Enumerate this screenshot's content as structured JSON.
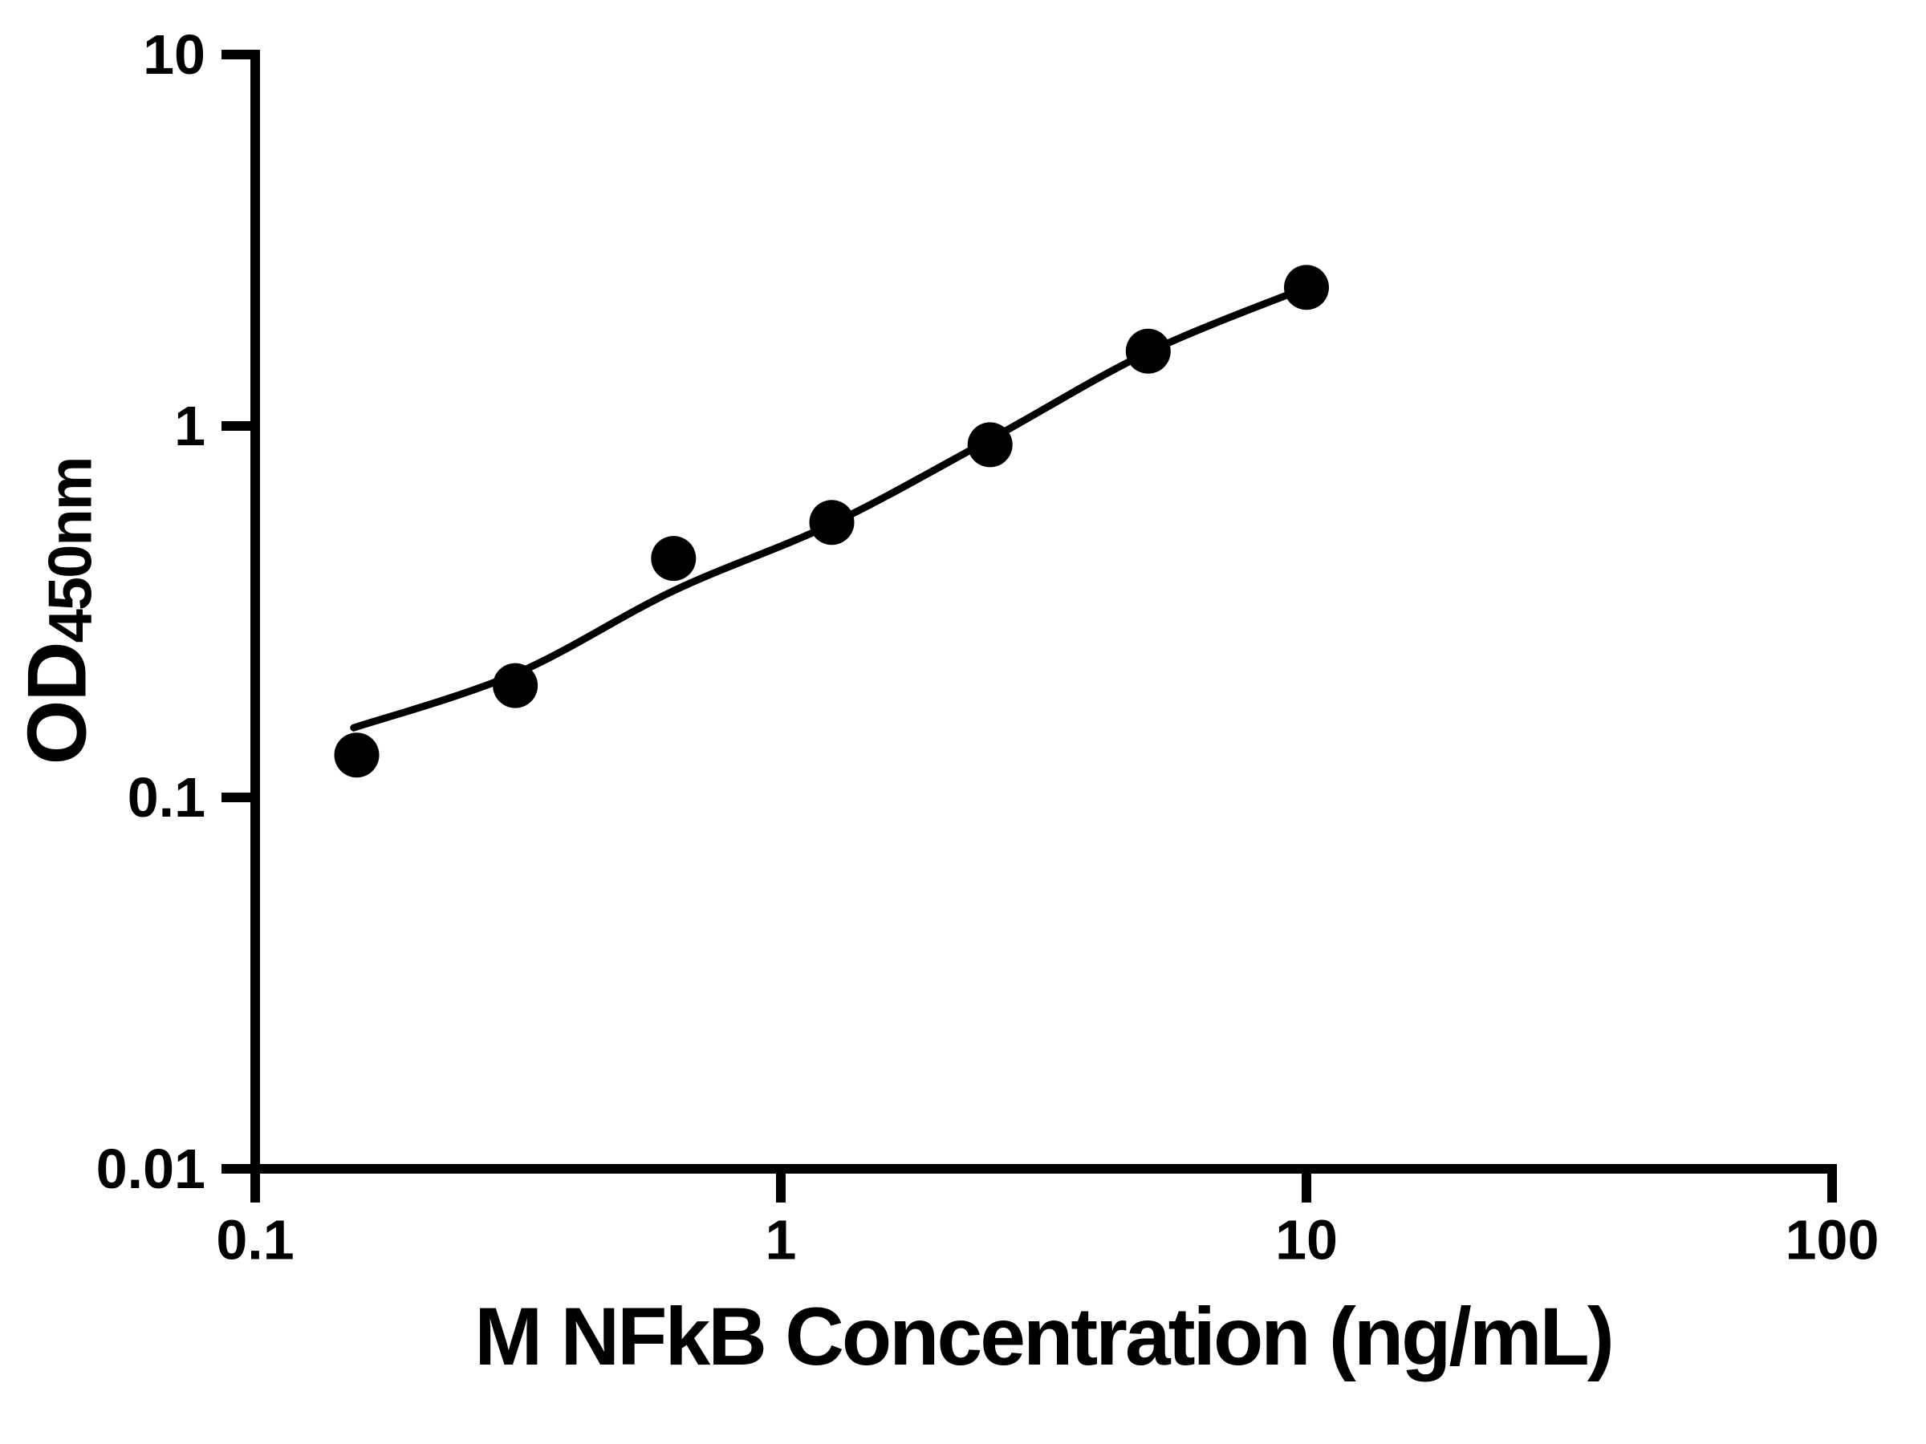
{
  "figure": {
    "background_color": "#ffffff",
    "ink_color": "#000000"
  },
  "chart_data": {
    "type": "scatter",
    "title": "",
    "xlabel": "M NFkB Concentration (ng/mL)",
    "ylabel_main": "OD",
    "ylabel_sub": "450nm",
    "x_scale": "log",
    "y_scale": "log",
    "xlim": [
      0.1,
      100
    ],
    "ylim": [
      0.01,
      10
    ],
    "grid": false,
    "legend": "none",
    "x_ticks": [
      {
        "value": 0.1,
        "label": "0.1"
      },
      {
        "value": 1,
        "label": "1"
      },
      {
        "value": 10,
        "label": "10"
      },
      {
        "value": 100,
        "label": "100"
      }
    ],
    "y_ticks": [
      {
        "value": 10,
        "label": "10"
      },
      {
        "value": 1,
        "label": "1"
      },
      {
        "value": 0.1,
        "label": "0.1"
      },
      {
        "value": 0.01,
        "label": "0.01"
      }
    ],
    "series": [
      {
        "name": "standard-points",
        "type": "scatter",
        "marker": "filled-circle",
        "color": "#000000",
        "points": [
          [
            0.156,
            0.13
          ],
          [
            0.3125,
            0.2
          ],
          [
            0.625,
            0.44
          ],
          [
            1.25,
            0.55
          ],
          [
            2.5,
            0.89
          ],
          [
            5,
            1.59
          ],
          [
            10,
            2.36
          ]
        ]
      },
      {
        "name": "fit-curve",
        "type": "line",
        "color": "#000000",
        "points": [
          [
            0.154,
            0.154
          ],
          [
            0.3125,
            0.215
          ],
          [
            0.625,
            0.36
          ],
          [
            1.25,
            0.545
          ],
          [
            2.5,
            0.92
          ],
          [
            5,
            1.58
          ],
          [
            10,
            2.36
          ]
        ]
      }
    ]
  }
}
